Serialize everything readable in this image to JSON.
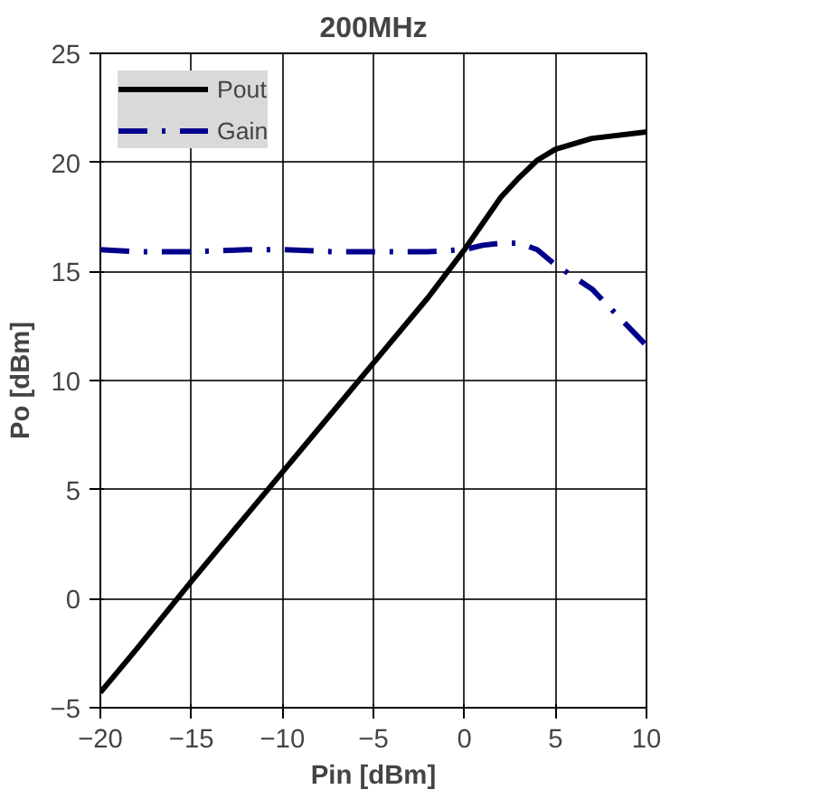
{
  "chart_data": {
    "type": "line",
    "title": "200MHz",
    "xlabel": "Pin [dBm]",
    "ylabel": "Po [dBm]",
    "x": [
      -20,
      -18,
      -15,
      -12,
      -10,
      -7,
      -5,
      -2,
      0,
      1,
      2,
      3,
      4,
      5,
      7,
      10
    ],
    "series": [
      {
        "name": "Pout",
        "color": "#000000",
        "line_style": "solid",
        "values": [
          -4.3,
          -2.3,
          0.8,
          3.8,
          5.8,
          8.8,
          10.8,
          13.8,
          16,
          17.2,
          18.4,
          19.3,
          20.1,
          20.6,
          21.1,
          21.4
        ]
      },
      {
        "name": "Gain",
        "color": "#00008b",
        "line_style": "dashdot",
        "values": [
          16,
          15.9,
          15.9,
          16,
          16,
          15.9,
          15.9,
          15.9,
          16,
          16.2,
          16.3,
          16.3,
          16,
          15.3,
          14.2,
          11.6
        ]
      }
    ],
    "xlim": [
      -20,
      10
    ],
    "ylim": [
      -5,
      25
    ],
    "xticks": [
      -20,
      -15,
      -10,
      -5,
      0,
      5,
      10
    ],
    "yticks": [
      -5,
      0,
      5,
      10,
      15,
      20,
      25
    ],
    "grid": true,
    "legend": "top left",
    "marker": "none"
  }
}
